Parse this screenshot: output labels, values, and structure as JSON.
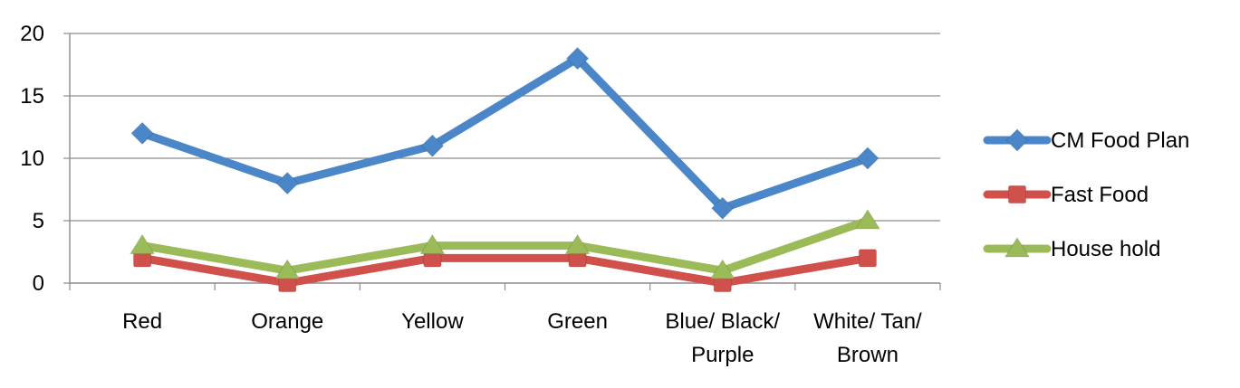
{
  "chart_data": {
    "type": "line",
    "title": "",
    "xlabel": "",
    "ylabel": "",
    "categories": [
      [
        "Red"
      ],
      [
        "Orange"
      ],
      [
        "Yellow"
      ],
      [
        "Green"
      ],
      [
        "Blue/ Black/",
        "Purple"
      ],
      [
        "White/ Tan/",
        "Brown"
      ]
    ],
    "ylim": [
      0,
      20
    ],
    "yticks": [
      "0",
      "5",
      "10",
      "15",
      "20"
    ],
    "grid": true,
    "legend_position": "right",
    "series": [
      {
        "name": "CM Food Plan",
        "values": [
          12,
          8,
          11,
          18,
          6,
          10
        ],
        "color": "#4a86c8",
        "marker": "diamond"
      },
      {
        "name": "Fast Food",
        "values": [
          2,
          0,
          2,
          2,
          0,
          2
        ],
        "color": "#d0504b",
        "marker": "square"
      },
      {
        "name": "House hold",
        "values": [
          3,
          1,
          3,
          3,
          1,
          5
        ],
        "color": "#9bbb59",
        "marker": "triangle"
      }
    ]
  }
}
